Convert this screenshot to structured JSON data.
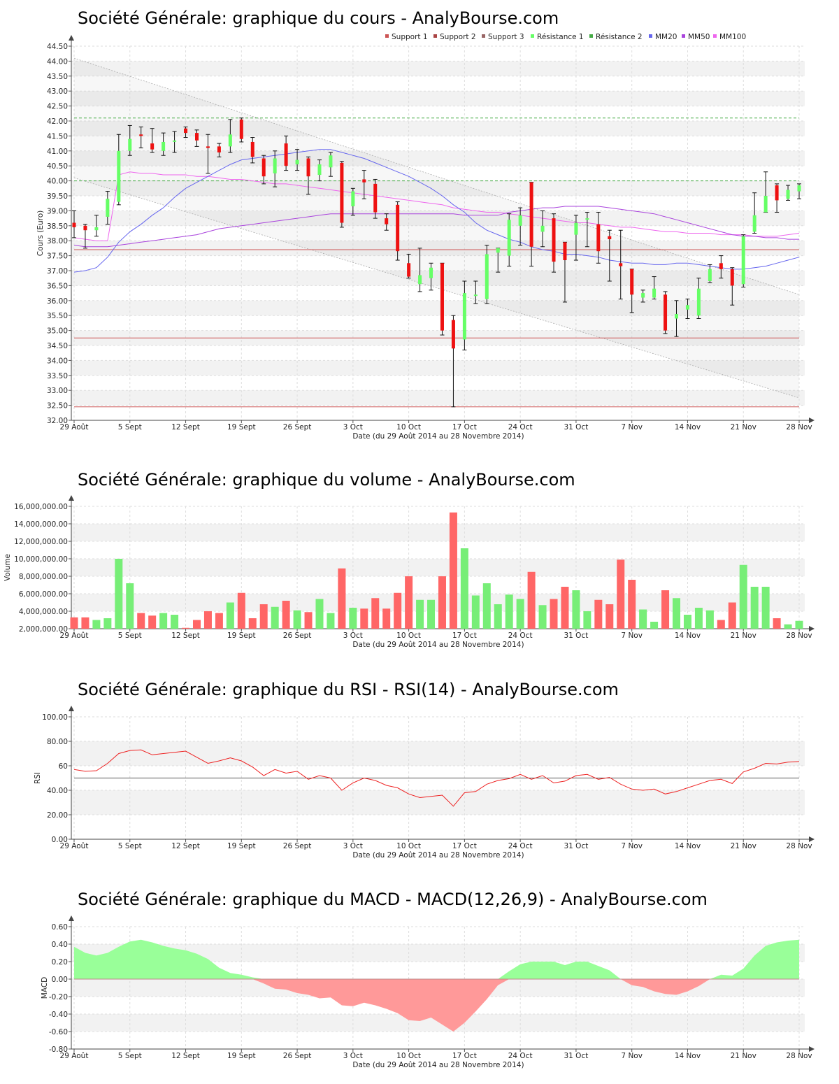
{
  "colors": {
    "up": "#66ff66",
    "down": "#ee1111",
    "vol_up": "#77ee77",
    "vol_down": "#ff6666",
    "mm20": "#6666ee",
    "mm50": "#aa44dd",
    "mm100": "#ee66ee",
    "support": "#cc5555",
    "resistance": "#44aa44",
    "rsi": "#ee2222",
    "macd_pos": "#99ff99",
    "macd_neg": "#ff9999"
  },
  "x_tick_labels": [
    "29 Août",
    "5 Sept",
    "12 Sept",
    "19 Sept",
    "26 Sept",
    "3 Oct",
    "10 Oct",
    "17 Oct",
    "24 Oct",
    "31 Oct",
    "7 Nov",
    "14 Nov",
    "21 Nov",
    "28 Nov"
  ],
  "x_label": "Date (du 29 Août 2014 au 28 Novembre 2014)",
  "chart_data": [
    {
      "type": "candlestick",
      "title": "Société Générale: graphique du cours - AnalyBourse.com",
      "ylabel": "Cours (Euro)",
      "xlabel": "Date (du 29 Août 2014 au 28 Novembre 2014)",
      "ylim": [
        32.0,
        44.5
      ],
      "yticks": [
        "32.00",
        "32.50",
        "33.00",
        "33.50",
        "34.00",
        "34.50",
        "35.00",
        "35.50",
        "36.00",
        "36.50",
        "37.00",
        "37.50",
        "38.00",
        "38.50",
        "39.00",
        "39.50",
        "40.00",
        "40.50",
        "41.00",
        "41.50",
        "42.00",
        "42.50",
        "43.00",
        "43.50",
        "44.00",
        "44.50"
      ],
      "legend": [
        "Support 1",
        "Support 2",
        "Support 3",
        "Résistance 1",
        "Résistance 2",
        "MM20",
        "MM50",
        "MM100"
      ],
      "levels": {
        "support_1": 37.7,
        "support_2": 34.75,
        "support_3": 32.45,
        "resistance_1": 40.0,
        "resistance_2": 42.1
      },
      "candles": [
        [
          38.6,
          38.45,
          39.0,
          38.1
        ],
        [
          38.5,
          38.35,
          38.55,
          37.75
        ],
        [
          38.35,
          38.45,
          38.85,
          38.15
        ],
        [
          38.8,
          39.4,
          39.65,
          38.55
        ],
        [
          39.3,
          41.0,
          41.55,
          39.2
        ],
        [
          41.0,
          41.4,
          41.85,
          40.85
        ],
        [
          41.55,
          41.5,
          41.8,
          41.1
        ],
        [
          41.25,
          41.05,
          41.75,
          40.95
        ],
        [
          41.0,
          41.3,
          41.6,
          40.85
        ],
        [
          41.35,
          41.35,
          41.65,
          40.95
        ],
        [
          41.75,
          41.6,
          41.8,
          41.45
        ],
        [
          41.6,
          41.35,
          41.7,
          41.15
        ],
        [
          41.15,
          41.1,
          41.55,
          40.25
        ],
        [
          41.15,
          40.95,
          41.25,
          40.8
        ],
        [
          41.15,
          41.55,
          42.05,
          40.95
        ],
        [
          42.05,
          41.4,
          42.1,
          41.3
        ],
        [
          41.3,
          40.8,
          41.45,
          40.6
        ],
        [
          40.75,
          40.15,
          40.85,
          39.9
        ],
        [
          40.25,
          40.75,
          41.0,
          39.8
        ],
        [
          41.25,
          40.5,
          41.5,
          40.35
        ],
        [
          40.55,
          40.7,
          41.05,
          40.35
        ],
        [
          40.75,
          40.15,
          40.8,
          39.55
        ],
        [
          40.2,
          40.55,
          40.7,
          40.0
        ],
        [
          40.45,
          40.85,
          40.95,
          40.15
        ],
        [
          40.6,
          38.6,
          40.65,
          38.45
        ],
        [
          39.15,
          39.65,
          39.75,
          38.85
        ],
        [
          40.05,
          39.95,
          40.35,
          39.4
        ],
        [
          39.9,
          38.95,
          40.05,
          38.75
        ],
        [
          38.75,
          38.55,
          38.9,
          38.35
        ],
        [
          39.2,
          37.65,
          39.3,
          37.35
        ],
        [
          37.25,
          36.8,
          37.55,
          36.75
        ],
        [
          36.55,
          36.85,
          37.75,
          36.3
        ],
        [
          36.75,
          37.1,
          37.25,
          36.35
        ],
        [
          37.25,
          35.0,
          37.25,
          34.85
        ],
        [
          35.35,
          34.4,
          35.5,
          32.45
        ],
        [
          34.7,
          36.25,
          36.65,
          34.35
        ],
        [
          36.2,
          36.2,
          36.65,
          35.9
        ],
        [
          36.05,
          37.55,
          37.85,
          35.9
        ],
        [
          37.6,
          37.75,
          37.75,
          36.95
        ],
        [
          37.5,
          38.7,
          38.9,
          37.15
        ],
        [
          38.5,
          38.85,
          39.1,
          37.85
        ],
        [
          39.95,
          37.8,
          39.95,
          37.15
        ],
        [
          38.3,
          38.5,
          39.0,
          37.8
        ],
        [
          38.75,
          37.3,
          38.9,
          36.95
        ],
        [
          37.95,
          37.35,
          37.95,
          35.95
        ],
        [
          38.2,
          38.6,
          38.85,
          37.35
        ],
        [
          38.75,
          38.75,
          38.95,
          37.8
        ],
        [
          38.55,
          37.65,
          38.95,
          37.25
        ],
        [
          38.15,
          38.05,
          38.35,
          36.65
        ],
        [
          37.25,
          37.15,
          38.35,
          36.05
        ],
        [
          37.05,
          36.2,
          37.05,
          35.6
        ],
        [
          36.1,
          36.25,
          36.35,
          35.95
        ],
        [
          36.1,
          36.4,
          36.8,
          36.05
        ],
        [
          36.2,
          35.0,
          36.3,
          34.9
        ],
        [
          35.4,
          35.55,
          36.0,
          34.8
        ],
        [
          35.7,
          35.85,
          36.05,
          35.4
        ],
        [
          35.5,
          36.4,
          36.75,
          35.4
        ],
        [
          36.65,
          37.05,
          37.2,
          36.6
        ],
        [
          37.25,
          37.05,
          37.5,
          36.75
        ],
        [
          37.05,
          36.5,
          37.1,
          35.85
        ],
        [
          36.55,
          38.15,
          38.2,
          36.45
        ],
        [
          38.3,
          38.85,
          39.6,
          38.25
        ],
        [
          38.95,
          39.5,
          40.3,
          38.95
        ],
        [
          39.85,
          39.35,
          39.9,
          38.95
        ],
        [
          39.4,
          39.7,
          39.85,
          39.35
        ],
        [
          39.65,
          39.85,
          39.9,
          39.4
        ]
      ],
      "mm20": [
        36.95,
        37.0,
        37.1,
        37.45,
        37.95,
        38.3,
        38.55,
        38.85,
        39.1,
        39.45,
        39.75,
        39.95,
        40.15,
        40.35,
        40.55,
        40.7,
        40.75,
        40.8,
        40.85,
        40.9,
        40.95,
        41.0,
        41.05,
        41.05,
        40.95,
        40.85,
        40.75,
        40.6,
        40.45,
        40.3,
        40.15,
        39.95,
        39.75,
        39.5,
        39.2,
        38.95,
        38.6,
        38.35,
        38.2,
        38.05,
        37.95,
        37.8,
        37.7,
        37.65,
        37.55,
        37.55,
        37.5,
        37.45,
        37.35,
        37.3,
        37.25,
        37.25,
        37.2,
        37.2,
        37.25,
        37.25,
        37.2,
        37.15,
        37.1,
        37.05,
        37.05,
        37.1,
        37.15,
        37.25,
        37.35,
        37.45
      ],
      "mm50": [
        37.85,
        37.8,
        37.8,
        37.8,
        37.85,
        37.9,
        37.95,
        38.0,
        38.05,
        38.1,
        38.15,
        38.2,
        38.3,
        38.4,
        38.45,
        38.5,
        38.55,
        38.6,
        38.65,
        38.7,
        38.75,
        38.8,
        38.85,
        38.9,
        38.9,
        38.9,
        38.9,
        38.9,
        38.9,
        38.9,
        38.9,
        38.9,
        38.9,
        38.9,
        38.9,
        38.85,
        38.85,
        38.85,
        38.85,
        38.95,
        39.0,
        39.05,
        39.1,
        39.1,
        39.15,
        39.15,
        39.15,
        39.15,
        39.1,
        39.05,
        39.0,
        38.95,
        38.9,
        38.8,
        38.7,
        38.6,
        38.5,
        38.4,
        38.3,
        38.2,
        38.15,
        38.15,
        38.1,
        38.1,
        38.05,
        38.05
      ],
      "mm100": [
        38.1,
        38.05,
        38.0,
        38.0,
        40.2,
        40.3,
        40.25,
        40.25,
        40.2,
        40.2,
        40.2,
        40.15,
        40.15,
        40.1,
        40.05,
        40.05,
        40.0,
        39.95,
        39.9,
        39.9,
        39.85,
        39.8,
        39.75,
        39.7,
        39.65,
        39.6,
        39.55,
        39.5,
        39.45,
        39.4,
        39.35,
        39.3,
        39.25,
        39.2,
        39.1,
        39.05,
        39.0,
        38.95,
        38.95,
        38.9,
        38.85,
        38.8,
        38.75,
        38.7,
        38.65,
        38.6,
        38.6,
        38.55,
        38.5,
        38.45,
        38.45,
        38.4,
        38.35,
        38.3,
        38.3,
        38.25,
        38.25,
        38.25,
        38.2,
        38.2,
        38.2,
        38.15,
        38.15,
        38.15,
        38.2,
        38.25
      ],
      "channel_upper": [
        44.1,
        36.2
      ],
      "channel_lower": [
        40.1,
        32.75
      ]
    },
    {
      "type": "bar",
      "title": "Société Générale: graphique du volume - AnalyBourse.com",
      "ylabel": "Volume",
      "xlabel": "Date (du 29 Août 2014 au 28 Novembre 2014)",
      "ylim": [
        2000000,
        16000000
      ],
      "yticks": [
        "2,000,000.00",
        "4,000,000.00",
        "6,000,000.00",
        "8,000,000.00",
        "10,000,000.00",
        "12,000,000.00",
        "14,000,000.00",
        "16,000,000.00"
      ],
      "values": [
        3300000,
        3300000,
        3000000,
        3200000,
        10000000,
        7200000,
        3800000,
        3500000,
        3800000,
        3600000,
        2100000,
        3000000,
        4000000,
        3800000,
        5000000,
        6100000,
        3200000,
        4800000,
        4500000,
        5200000,
        4100000,
        3900000,
        5400000,
        3800000,
        8900000,
        4400000,
        4300000,
        5500000,
        4300000,
        6100000,
        8000000,
        5300000,
        5300000,
        8000000,
        15300000,
        11200000,
        5800000,
        7200000,
        4800000,
        5900000,
        5400000,
        8500000,
        4700000,
        5400000,
        6800000,
        6400000,
        4000000,
        5300000,
        4800000,
        9900000,
        7600000,
        4200000,
        2800000,
        6400000,
        5500000,
        3600000,
        4400000,
        4100000,
        3000000,
        5000000,
        9300000,
        6800000,
        6800000,
        3200000,
        2500000,
        2900000
      ]
    },
    {
      "type": "line",
      "title": "Société Générale: graphique du RSI - RSI(14) - AnalyBourse.com",
      "ylabel": "RSI",
      "xlabel": "Date (du 29 Août 2014 au 28 Novembre 2014)",
      "ylim": [
        0,
        100
      ],
      "yticks": [
        "0.00",
        "20.00",
        "40.00",
        "60",
        "80.00",
        "100.00"
      ],
      "reference": 50,
      "values": [
        57,
        55.5,
        56,
        62,
        70,
        72.5,
        73,
        69,
        70,
        71,
        72,
        67,
        62,
        64,
        66.5,
        64,
        59,
        52,
        57,
        54,
        55.5,
        49,
        52,
        50,
        40,
        46,
        50,
        48,
        44,
        42,
        37,
        34,
        35,
        36,
        27,
        38,
        39,
        45,
        48,
        49.5,
        53,
        49,
        52,
        46,
        47.5,
        52,
        53,
        49,
        50.5,
        45,
        41,
        40,
        41,
        37,
        39,
        42,
        45,
        48,
        49,
        45.5,
        55,
        58,
        62,
        61.5,
        63,
        63.5
      ]
    },
    {
      "type": "area",
      "title": "Société Générale: graphique du MACD - MACD(12,26,9) - AnalyBourse.com",
      "ylabel": "MACD",
      "xlabel": "Date (du 29 Août 2014 au 28 Novembre 2014)",
      "ylim": [
        -0.8,
        0.6
      ],
      "yticks": [
        "-0.80",
        "-0.60",
        "-0.40",
        "-0.20",
        "0.00",
        "0.20",
        "0.40",
        "0.60"
      ],
      "values": [
        0.37,
        0.3,
        0.27,
        0.3,
        0.37,
        0.43,
        0.45,
        0.42,
        0.38,
        0.35,
        0.33,
        0.29,
        0.23,
        0.13,
        0.07,
        0.05,
        0.02,
        -0.05,
        -0.11,
        -0.12,
        -0.16,
        -0.18,
        -0.22,
        -0.21,
        -0.3,
        -0.31,
        -0.27,
        -0.3,
        -0.34,
        -0.39,
        -0.47,
        -0.48,
        -0.44,
        -0.52,
        -0.6,
        -0.5,
        -0.37,
        -0.23,
        -0.07,
        0.09,
        0.17,
        0.2,
        0.2,
        0.2,
        0.16,
        0.2,
        0.2,
        0.15,
        0.1,
        0.0,
        -0.07,
        -0.09,
        -0.14,
        -0.17,
        -0.18,
        -0.14,
        -0.08,
        0.0,
        0.05,
        0.04,
        0.12,
        0.27,
        0.38,
        0.42,
        0.44,
        0.45
      ]
    }
  ]
}
